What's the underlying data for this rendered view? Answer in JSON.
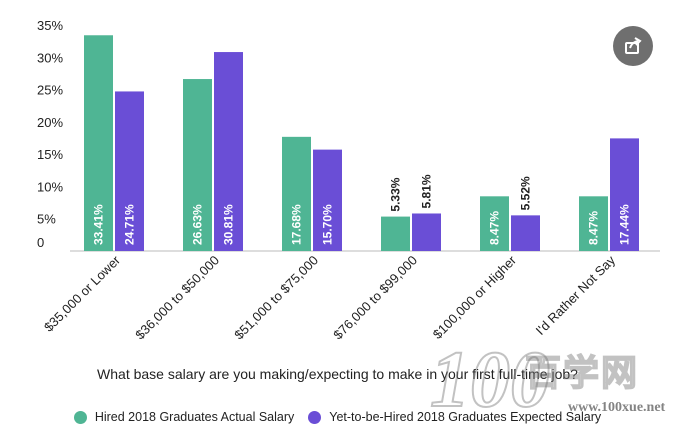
{
  "chart_data": {
    "type": "bar",
    "title": "",
    "subtitle": "What base salary are you making/expecting to make in your first full-time job?",
    "xlabel": "",
    "ylabel": "",
    "ylim": [
      0,
      35
    ],
    "yticks": [
      "0",
      "5%",
      "10%",
      "15%",
      "20%",
      "25%",
      "30%",
      "35%"
    ],
    "legend_position": "bottom",
    "categories": [
      "$35,000 or Lower",
      "$36,000 to $50,000",
      "$51,000 to $75,000",
      "$76,000 to $99,000",
      "$100,000 or Higher",
      "I'd Rather Not Say"
    ],
    "series": [
      {
        "name": "Hired 2018 Graduates Actual Salary",
        "color": "#4fb594",
        "values": [
          33.41,
          26.63,
          17.68,
          5.33,
          8.47,
          8.47
        ],
        "labels": [
          "33.41%",
          "26.63%",
          "17.68%",
          "5.33%",
          "8.47%",
          "8.47%"
        ]
      },
      {
        "name": "Yet-to-be-Hired 2018 Graduates Expected Salary",
        "color": "#6a4ed6",
        "values": [
          24.71,
          30.81,
          15.7,
          5.81,
          5.52,
          17.44
        ],
        "labels": [
          "24.71%",
          "30.81%",
          "15.70%",
          "5.81%",
          "5.52%",
          "17.44%"
        ]
      }
    ]
  },
  "share_icon": "share-icon",
  "watermark": {
    "number": "100",
    "chinese": "百学网",
    "url": "www.100xue.net"
  }
}
